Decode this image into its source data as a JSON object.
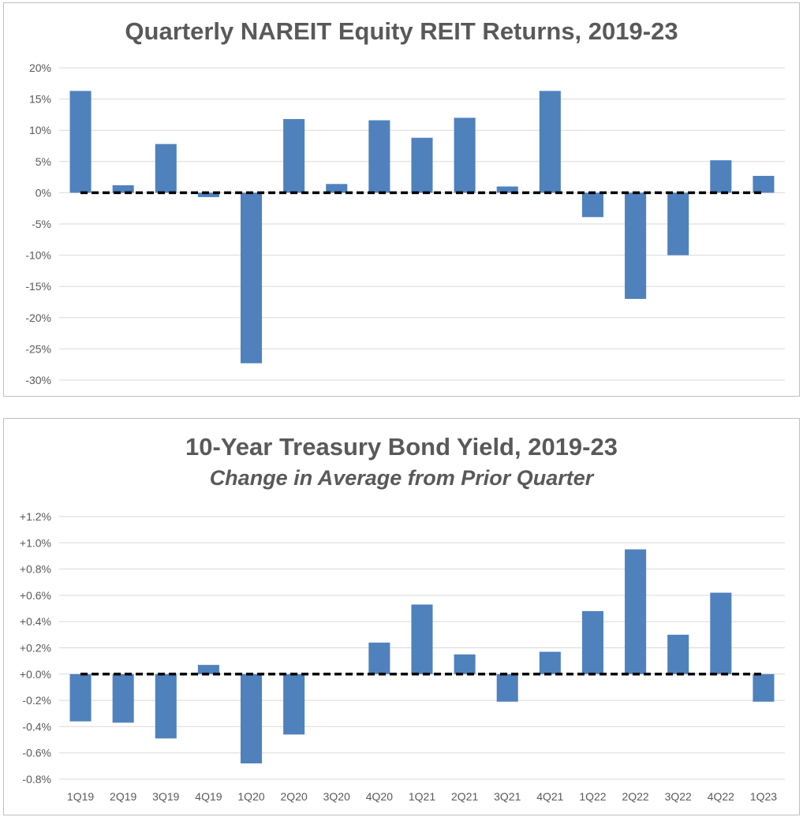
{
  "colors": {
    "bar": "#4f81bd",
    "grid": "#d9d9d9",
    "zero_line": "#000000",
    "text": "#595959"
  },
  "chart_data": [
    {
      "type": "bar",
      "title": "Quarterly NAREIT Equity REIT Returns, 2019-23",
      "subtitle": "",
      "categories": [
        "1Q19",
        "2Q19",
        "3Q19",
        "4Q19",
        "1Q20",
        "2Q20",
        "3Q20",
        "4Q20",
        "1Q21",
        "2Q21",
        "3Q21",
        "4Q21",
        "1Q22",
        "2Q22",
        "3Q22",
        "4Q22",
        "1Q23"
      ],
      "series": [
        {
          "values": [
            16.3,
            1.2,
            7.8,
            -0.7,
            -27.3,
            11.8,
            1.4,
            11.6,
            8.8,
            12.0,
            1.0,
            16.3,
            -3.9,
            -17.0,
            -10.0,
            5.2,
            2.7
          ]
        }
      ],
      "ylim": [
        -30,
        20
      ],
      "yticks": [
        20,
        15,
        10,
        5,
        0,
        -5,
        -10,
        -15,
        -20,
        -25,
        -30
      ],
      "ytick_labels": [
        "20%",
        "15%",
        "10%",
        "5%",
        "0%",
        "-5%",
        "-10%",
        "-15%",
        "-20%",
        "-25%",
        "-30%"
      ],
      "show_xtick_labels": false,
      "grid": true,
      "zero_line": "dashed"
    },
    {
      "type": "bar",
      "title": "10-Year Treasury Bond Yield, 2019-23",
      "subtitle": "Change in Average from Prior Quarter",
      "categories": [
        "1Q19",
        "2Q19",
        "3Q19",
        "4Q19",
        "1Q20",
        "2Q20",
        "3Q20",
        "4Q20",
        "1Q21",
        "2Q21",
        "3Q21",
        "4Q21",
        "1Q22",
        "2Q22",
        "3Q22",
        "4Q22",
        "1Q23"
      ],
      "series": [
        {
          "values": [
            -0.36,
            -0.37,
            -0.49,
            0.07,
            -0.68,
            -0.46,
            0.0,
            0.24,
            0.53,
            0.15,
            -0.21,
            0.17,
            0.48,
            0.95,
            0.3,
            0.62,
            -0.21
          ]
        }
      ],
      "ylim": [
        -0.8,
        1.2
      ],
      "yticks": [
        1.2,
        1.0,
        0.8,
        0.6,
        0.4,
        0.2,
        0.0,
        -0.2,
        -0.4,
        -0.6,
        -0.8
      ],
      "ytick_labels": [
        "+1.2%",
        "+1.0%",
        "+0.8%",
        "+0.6%",
        "+0.4%",
        "+0.2%",
        "+0.0%",
        "-0.2%",
        "-0.4%",
        "-0.6%",
        "-0.8%"
      ],
      "show_xtick_labels": true,
      "grid": true,
      "zero_line": "dashed"
    }
  ]
}
